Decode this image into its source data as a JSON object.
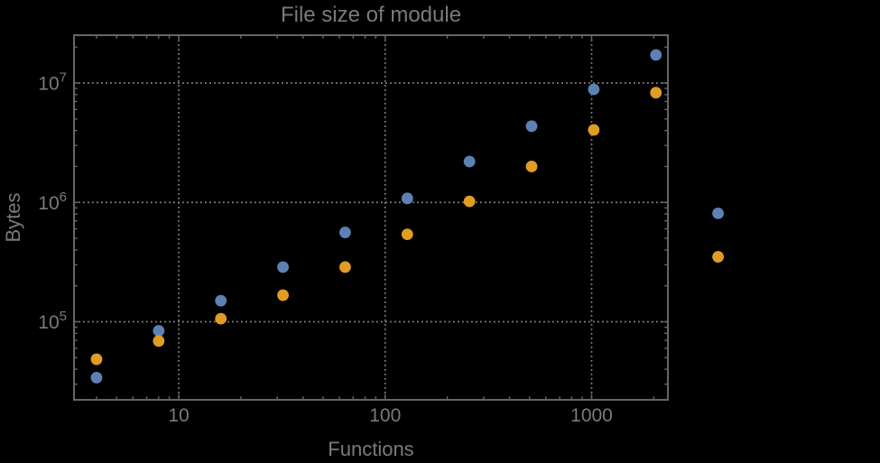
{
  "title": "File size of module",
  "chart_data": {
    "type": "scatter",
    "title": "File size of module",
    "xlabel": "Functions",
    "ylabel": "Bytes",
    "x_scale": "log",
    "y_scale": "log",
    "x_range": [
      3.1,
      2340
    ],
    "y_range": [
      22000,
      25000000
    ],
    "grid": "dotted gridlines at decades",
    "legend": "none",
    "x_gridlines": [
      10,
      100,
      1000
    ],
    "y_gridlines": [
      100000,
      1000000,
      10000000
    ],
    "x_tick_labels": [
      {
        "value": 10,
        "label": "10"
      },
      {
        "value": 100,
        "label": "100"
      },
      {
        "value": 1000,
        "label": "1000"
      }
    ],
    "y_tick_labels": [
      {
        "value": 100000,
        "base": "10",
        "exponent": "5"
      },
      {
        "value": 1000000,
        "base": "10",
        "exponent": "6"
      },
      {
        "value": 10000000,
        "base": "10",
        "exponent": "7"
      }
    ],
    "series": [
      {
        "name": "blue",
        "color": "#5e81b5",
        "x": [
          4,
          8,
          16,
          32,
          64,
          128,
          256,
          512,
          1024,
          2048,
          4096
        ],
        "y": [
          34000,
          84000,
          150000,
          287000,
          560000,
          1080000,
          2200000,
          4350000,
          8850000,
          17200000,
          810000
        ]
      },
      {
        "name": "orange",
        "color": "#e19c24",
        "x": [
          4,
          8,
          16,
          32,
          64,
          128,
          256,
          512,
          1024,
          2048,
          4096
        ],
        "y": [
          48500,
          69000,
          106000,
          167000,
          287000,
          540000,
          1020000,
          2000000,
          4050000,
          8300000,
          350000
        ]
      }
    ],
    "marker": {
      "shape": "circle",
      "radius_px": 6.4
    },
    "note": "points of both series at x=4096 are drawn outside the right edge of the plot frame"
  },
  "colors": {
    "background": "#000000",
    "frame": "#666666",
    "gridline": "#858585",
    "text": "#7a7a7a",
    "series_blue": "#5e81b5",
    "series_orange": "#e19c24"
  }
}
